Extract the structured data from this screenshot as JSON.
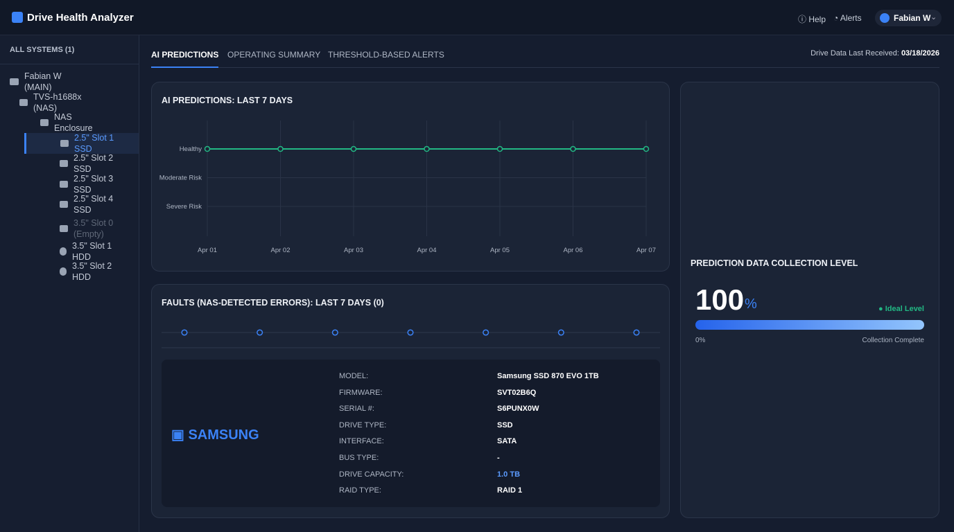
{
  "header": {
    "title": "Drive Health Analyzer",
    "help": "Help",
    "alerts": "Alerts",
    "user": "Fabian W"
  },
  "sidebar": {
    "heading": "ALL SYSTEMS (1)",
    "items": [
      {
        "label": "Fabian W (MAIN)",
        "level": 0,
        "icon": "monitor"
      },
      {
        "label": "TVS-h1688x (NAS)",
        "level": 1,
        "icon": "nas"
      },
      {
        "label": "NAS Enclosure",
        "level": 2,
        "icon": "enclosure"
      },
      {
        "label": "2.5\" Slot 1 SSD",
        "level": 3,
        "icon": "ssd",
        "selected": true
      },
      {
        "label": "2.5\" Slot 2 SSD",
        "level": 3,
        "icon": "ssd"
      },
      {
        "label": "2.5\" Slot 3 SSD",
        "level": 3,
        "icon": "ssd"
      },
      {
        "label": "2.5\" Slot 4 SSD",
        "level": 3,
        "icon": "ssd"
      },
      {
        "label": "3.5\" Slot 0 (Empty)",
        "level": 3,
        "icon": "ssd",
        "disabled": true
      },
      {
        "label": "3.5\" Slot 1 HDD",
        "level": 3,
        "icon": "hdd"
      },
      {
        "label": "3.5\" Slot 2 HDD",
        "level": 3,
        "icon": "hdd"
      }
    ]
  },
  "tabs": {
    "items": [
      "AI PREDICTIONS",
      "OPERATING SUMMARY",
      "THRESHOLD-BASED ALERTS"
    ],
    "active": 0
  },
  "last_received": {
    "label": "Drive Data Last Received:",
    "date": "03/18/2026"
  },
  "prediction_chart": {
    "type": "line",
    "title": "AI PREDICTIONS: LAST 7 DAYS",
    "x": [
      "Apr 01",
      "Apr 02",
      "Apr 03",
      "Apr 04",
      "Apr 05",
      "Apr 06",
      "Apr 07"
    ],
    "y_levels": [
      "Healthy",
      "Moderate Risk",
      "Severe Risk"
    ],
    "values": [
      "Healthy",
      "Healthy",
      "Healthy",
      "Healthy",
      "Healthy",
      "Healthy",
      "Healthy"
    ],
    "color": "#22b884",
    "grid": true
  },
  "faults_chart": {
    "type": "dot",
    "title": "FAULTS (NAS-DETECTED ERRORS): LAST 7 DAYS (0)",
    "values": [
      0,
      0,
      0,
      0,
      0,
      0,
      0
    ],
    "color": "#3b82f6"
  },
  "drive": {
    "brand": "SAMSUNG",
    "rows": [
      [
        "MODEL:",
        "Samsung SSD 870 EVO 1TB"
      ],
      [
        "FIRMWARE:",
        "SVT02B6Q"
      ],
      [
        "SERIAL #:",
        "S6PUNX0W"
      ],
      [
        "DRIVE TYPE:",
        "SSD"
      ],
      [
        "INTERFACE:",
        "SATA"
      ],
      [
        "BUS TYPE:",
        "-"
      ],
      [
        "DRIVE CAPACITY:",
        "1.0 TB"
      ],
      [
        "RAID TYPE:",
        "RAID 1"
      ]
    ]
  },
  "collection": {
    "title": "PREDICTION DATA COLLECTION LEVEL",
    "value": 100,
    "unit": "%",
    "status": "Ideal Level",
    "range": [
      0,
      100
    ],
    "start_label": "0%",
    "end_label": "Collection Complete"
  }
}
